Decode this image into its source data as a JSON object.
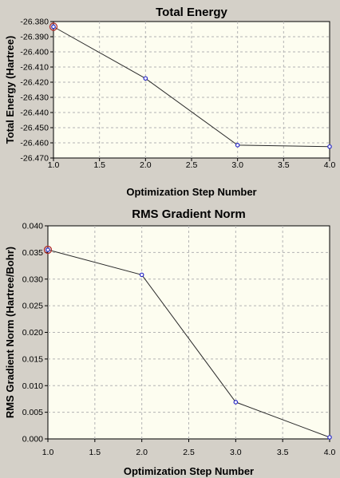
{
  "colors": {
    "window_background": "#d4d0c8",
    "plot_background": "#fdfdf0",
    "grid": "#b4b4b4",
    "line": "#2a2a2a",
    "marker": "#2a2ac8",
    "highlight_marker": "#b03030"
  },
  "chart_data": [
    {
      "type": "line",
      "title": "Total Energy",
      "xlabel": "Optimization Step Number",
      "ylabel": "Total Energy (Hartree)",
      "xlim": [
        1.0,
        4.0
      ],
      "ylim": [
        -26.47,
        -26.38
      ],
      "xticks": [
        "1.0",
        "1.5",
        "2.0",
        "2.5",
        "3.0",
        "3.5",
        "4.0"
      ],
      "yticks": [
        "-26.380",
        "-26.390",
        "-26.400",
        "-26.410",
        "-26.420",
        "-26.430",
        "-26.440",
        "-26.450",
        "-26.460",
        "-26.470"
      ],
      "grid": true,
      "x": [
        1,
        2,
        3,
        4
      ],
      "y": [
        -26.3834,
        -26.4175,
        -26.4615,
        -26.4625
      ],
      "highlighted_point_index": 0
    },
    {
      "type": "line",
      "title": "RMS Gradient Norm",
      "xlabel": "Optimization Step Number",
      "ylabel": "RMS Gradient Norm (Hartree/Bohr)",
      "xlim": [
        1.0,
        4.0
      ],
      "ylim": [
        0.0,
        0.04
      ],
      "xticks": [
        "1.0",
        "1.5",
        "2.0",
        "2.5",
        "3.0",
        "3.5",
        "4.0"
      ],
      "yticks": [
        "0.040",
        "0.035",
        "0.030",
        "0.025",
        "0.020",
        "0.015",
        "0.010",
        "0.005",
        "0.000"
      ],
      "grid": true,
      "x": [
        1,
        2,
        3,
        4
      ],
      "y": [
        0.0355,
        0.0308,
        0.0069,
        0.0003
      ],
      "highlighted_point_index": 0
    }
  ]
}
